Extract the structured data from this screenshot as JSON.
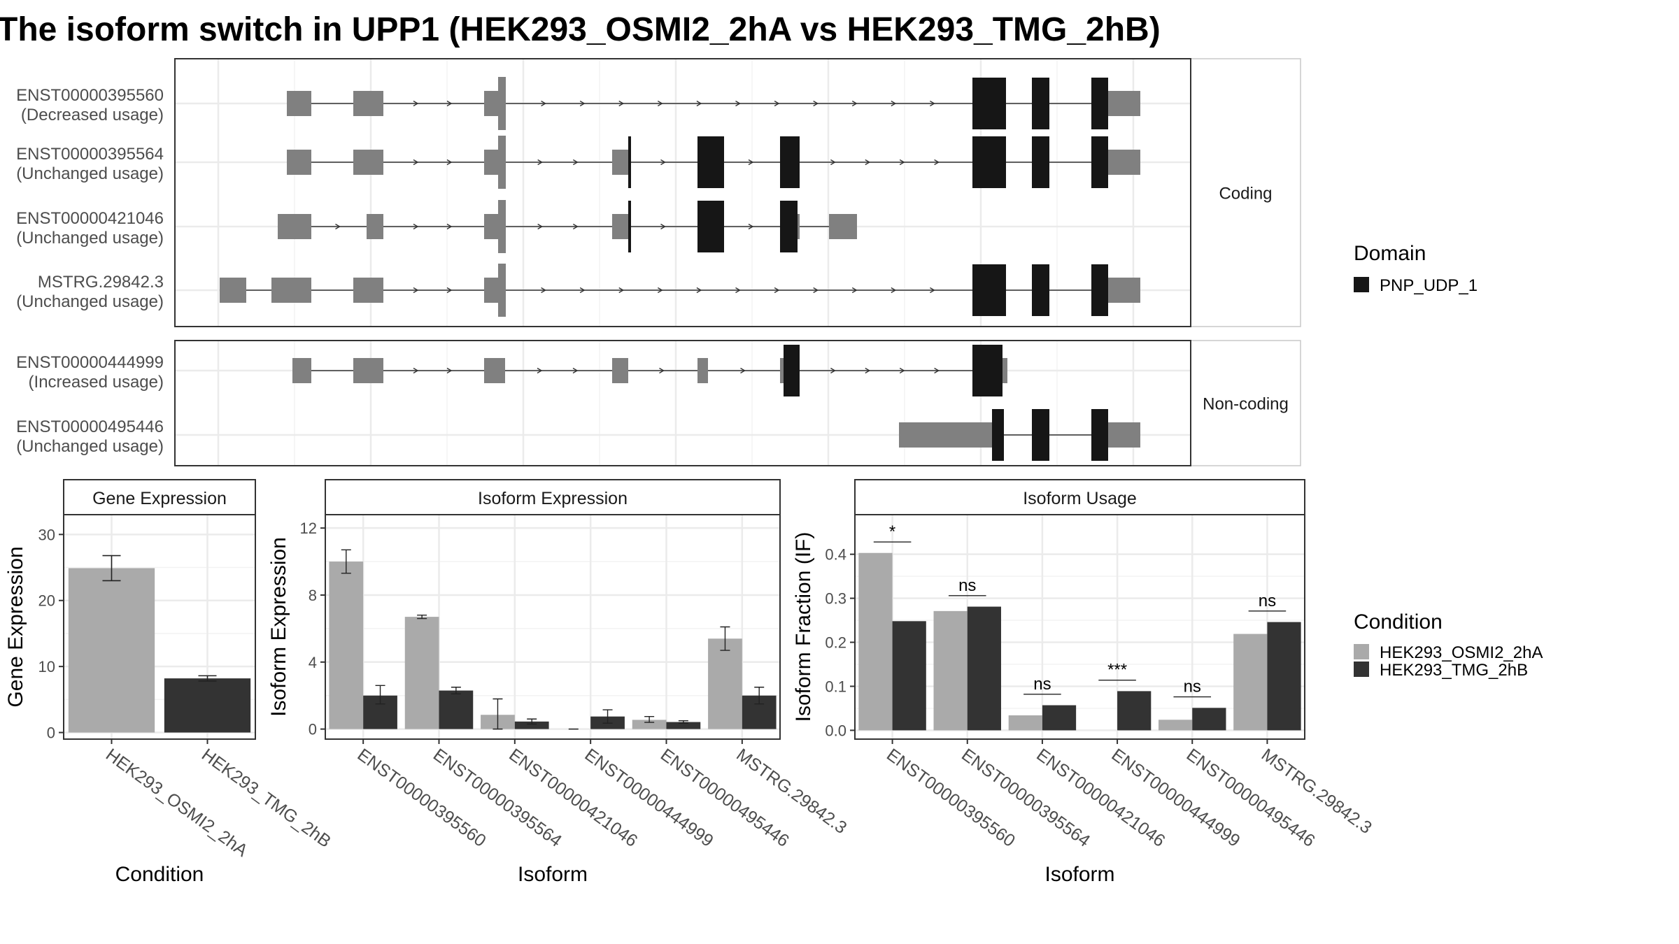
{
  "title": "The isoform switch in UPP1 (HEK293_OSMI2_2hA vs HEK293_TMG_2hB)",
  "colors": {
    "exon_utr": "#808080",
    "domain": "#161616",
    "cond1": "#aaaaaa",
    "cond2": "#333333",
    "grid": "#ebebeb",
    "panel_border": "#333333"
  },
  "structure": {
    "facets": [
      "Coding",
      "Non-coding"
    ],
    "isoforms": [
      {
        "id": "ENST00000395560",
        "usage": "(Decreased usage)",
        "group": 0,
        "exons": [
          [
            410,
            445,
            "u"
          ],
          [
            505,
            548,
            "u"
          ],
          [
            692,
            712,
            "u"
          ],
          [
            712,
            723,
            "u"
          ],
          [
            1390,
            1438,
            "d"
          ],
          [
            1475,
            1500,
            "d"
          ],
          [
            1560,
            1584,
            "d"
          ],
          [
            1584,
            1630,
            "u"
          ]
        ]
      },
      {
        "id": "ENST00000395564",
        "usage": "(Unchanged usage)",
        "group": 0,
        "exons": [
          [
            410,
            445,
            "u"
          ],
          [
            505,
            548,
            "u"
          ],
          [
            692,
            712,
            "u"
          ],
          [
            712,
            723,
            "u"
          ],
          [
            875,
            898,
            "u"
          ],
          [
            898,
            902,
            "d"
          ],
          [
            997,
            1035,
            "d"
          ],
          [
            1115,
            1143,
            "d"
          ],
          [
            1390,
            1438,
            "d"
          ],
          [
            1475,
            1500,
            "d"
          ],
          [
            1560,
            1584,
            "d"
          ],
          [
            1584,
            1630,
            "u"
          ]
        ]
      },
      {
        "id": "ENST00000421046",
        "usage": "(Unchanged usage)",
        "group": 0,
        "exons": [
          [
            397,
            445,
            "u"
          ],
          [
            524,
            548,
            "u"
          ],
          [
            692,
            712,
            "u"
          ],
          [
            712,
            723,
            "u"
          ],
          [
            875,
            898,
            "u"
          ],
          [
            898,
            902,
            "d"
          ],
          [
            997,
            1035,
            "d"
          ],
          [
            1115,
            1140,
            "d"
          ],
          [
            1140,
            1143,
            "u"
          ],
          [
            1185,
            1225,
            "u"
          ]
        ]
      },
      {
        "id": "MSTRG.29842.3",
        "usage": "(Unchanged usage)",
        "group": 0,
        "exons": [
          [
            314,
            352,
            "u"
          ],
          [
            388,
            445,
            "u"
          ],
          [
            505,
            548,
            "u"
          ],
          [
            692,
            712,
            "u"
          ],
          [
            712,
            723,
            "u"
          ],
          [
            1390,
            1438,
            "d"
          ],
          [
            1475,
            1500,
            "d"
          ],
          [
            1560,
            1584,
            "d"
          ],
          [
            1584,
            1630,
            "u"
          ]
        ]
      },
      {
        "id": "ENST00000444999",
        "usage": "(Increased usage)",
        "group": 1,
        "exons": [
          [
            418,
            445,
            "u"
          ],
          [
            505,
            548,
            "u"
          ],
          [
            692,
            722,
            "u"
          ],
          [
            875,
            898,
            "u"
          ],
          [
            997,
            1012,
            "u"
          ],
          [
            1115,
            1120,
            "u"
          ],
          [
            1120,
            1143,
            "d"
          ],
          [
            1390,
            1433,
            "d"
          ],
          [
            1433,
            1440,
            "u"
          ]
        ]
      },
      {
        "id": "ENST00000495446",
        "usage": "(Unchanged usage)",
        "group": 1,
        "exons": [
          [
            1285,
            1418,
            "u"
          ],
          [
            1418,
            1435,
            "d"
          ],
          [
            1475,
            1500,
            "d"
          ],
          [
            1560,
            1584,
            "d"
          ],
          [
            1584,
            1630,
            "u"
          ]
        ]
      }
    ]
  },
  "legend_domain": {
    "title": "Domain",
    "items": [
      "PNP_UDP_1"
    ]
  },
  "legend_condition": {
    "title": "Condition",
    "items": [
      "HEK293_OSMI2_2hA",
      "HEK293_TMG_2hB"
    ]
  },
  "chart_data": [
    {
      "type": "bar",
      "title": "Gene Expression",
      "xlabel": "Condition",
      "ylabel": "Gene Expression",
      "categories": [
        "HEK293_OSMI2_2hA",
        "HEK293_TMG_2hB"
      ],
      "values": [
        24.9,
        8.2
      ],
      "errors": [
        [
          23.0,
          26.8
        ],
        [
          7.8,
          8.6
        ]
      ],
      "ylim": [
        -1,
        33
      ],
      "yticks": [
        0,
        10,
        20,
        30
      ]
    },
    {
      "type": "bar",
      "title": "Isoform Expression",
      "xlabel": "Isoform",
      "ylabel": "Isoform Expression",
      "categories": [
        "ENST00000395560",
        "ENST00000395564",
        "ENST00000421046",
        "ENST00000444999",
        "ENST00000495446",
        "MSTRG.29842.3"
      ],
      "series": [
        {
          "name": "HEK293_OSMI2_2hA",
          "values": [
            10.0,
            6.7,
            0.85,
            0.0,
            0.55,
            5.4
          ],
          "errors": [
            [
              9.3,
              10.7
            ],
            [
              6.6,
              6.8
            ],
            [
              0.0,
              1.8
            ],
            [
              0.0,
              0.0
            ],
            [
              0.4,
              0.75
            ],
            [
              4.7,
              6.1
            ]
          ]
        },
        {
          "name": "HEK293_TMG_2hB",
          "values": [
            2.0,
            2.3,
            0.45,
            0.75,
            0.42,
            2.0
          ],
          "errors": [
            [
              1.5,
              2.6
            ],
            [
              2.1,
              2.5
            ],
            [
              0.3,
              0.6
            ],
            [
              0.35,
              1.15
            ],
            [
              0.35,
              0.5
            ],
            [
              1.5,
              2.5
            ]
          ]
        }
      ],
      "ylim": [
        -0.6,
        12.8
      ],
      "yticks": [
        0,
        4,
        8,
        12
      ]
    },
    {
      "type": "bar",
      "title": "Isoform Usage",
      "xlabel": "Isoform",
      "ylabel": "Isoform Fraction (IF)",
      "categories": [
        "ENST00000395560",
        "ENST00000395564",
        "ENST00000421046",
        "ENST00000444999",
        "ENST00000495446",
        "MSTRG.29842.3"
      ],
      "series": [
        {
          "name": "HEK293_OSMI2_2hA",
          "values": [
            0.403,
            0.271,
            0.034,
            0.0,
            0.024,
            0.219
          ]
        },
        {
          "name": "HEK293_TMG_2hB",
          "values": [
            0.248,
            0.281,
            0.057,
            0.089,
            0.051,
            0.246
          ]
        }
      ],
      "significance": [
        "*",
        "ns",
        "ns",
        "***",
        "ns",
        "ns"
      ],
      "ylim": [
        -0.02,
        0.49
      ],
      "yticks": [
        0.0,
        0.1,
        0.2,
        0.3,
        0.4
      ]
    }
  ]
}
